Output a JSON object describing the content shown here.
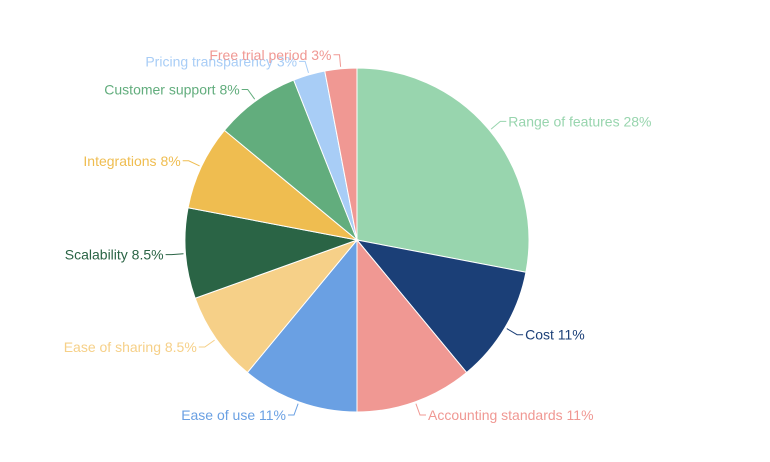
{
  "chart_data": {
    "type": "pie",
    "title": "",
    "start_angle_deg": 0,
    "direction": "clockwise",
    "slices": [
      {
        "label": "Range of features",
        "value": 28,
        "display": "Range of features 28%",
        "color": "#98d5ae",
        "label_color": "#98d5ae"
      },
      {
        "label": "Cost",
        "value": 11,
        "display": "Cost 11%",
        "color": "#1b3f77",
        "label_color": "#1b3f77"
      },
      {
        "label": "Accounting standards",
        "value": 11,
        "display": "Accounting standards 11%",
        "color": "#f09893",
        "label_color": "#f09893"
      },
      {
        "label": "Ease of use",
        "value": 11,
        "display": "Ease of use 11%",
        "color": "#6aa0e3",
        "label_color": "#6aa0e3"
      },
      {
        "label": "Ease of sharing",
        "value": 8.5,
        "display": "Ease of sharing 8.5%",
        "color": "#f6d088",
        "label_color": "#f6d088"
      },
      {
        "label": "Scalability",
        "value": 8.5,
        "display": "Scalability 8.5%",
        "color": "#2a6445",
        "label_color": "#2a6445"
      },
      {
        "label": "Integrations",
        "value": 8,
        "display": "Integrations 8%",
        "color": "#efbd50",
        "label_color": "#efbd50"
      },
      {
        "label": "Customer support",
        "value": 8,
        "display": "Customer support 8%",
        "color": "#62ad7d",
        "label_color": "#62ad7d"
      },
      {
        "label": "Pricing transparency",
        "value": 3,
        "display": "Pricing transparency 3%",
        "color": "#a8cdf6",
        "label_color": "#a8cdf6"
      },
      {
        "label": "Free trial period",
        "value": 3,
        "display": "Free trial period 3%",
        "color": "#f09893",
        "label_color": "#f09893"
      }
    ]
  }
}
